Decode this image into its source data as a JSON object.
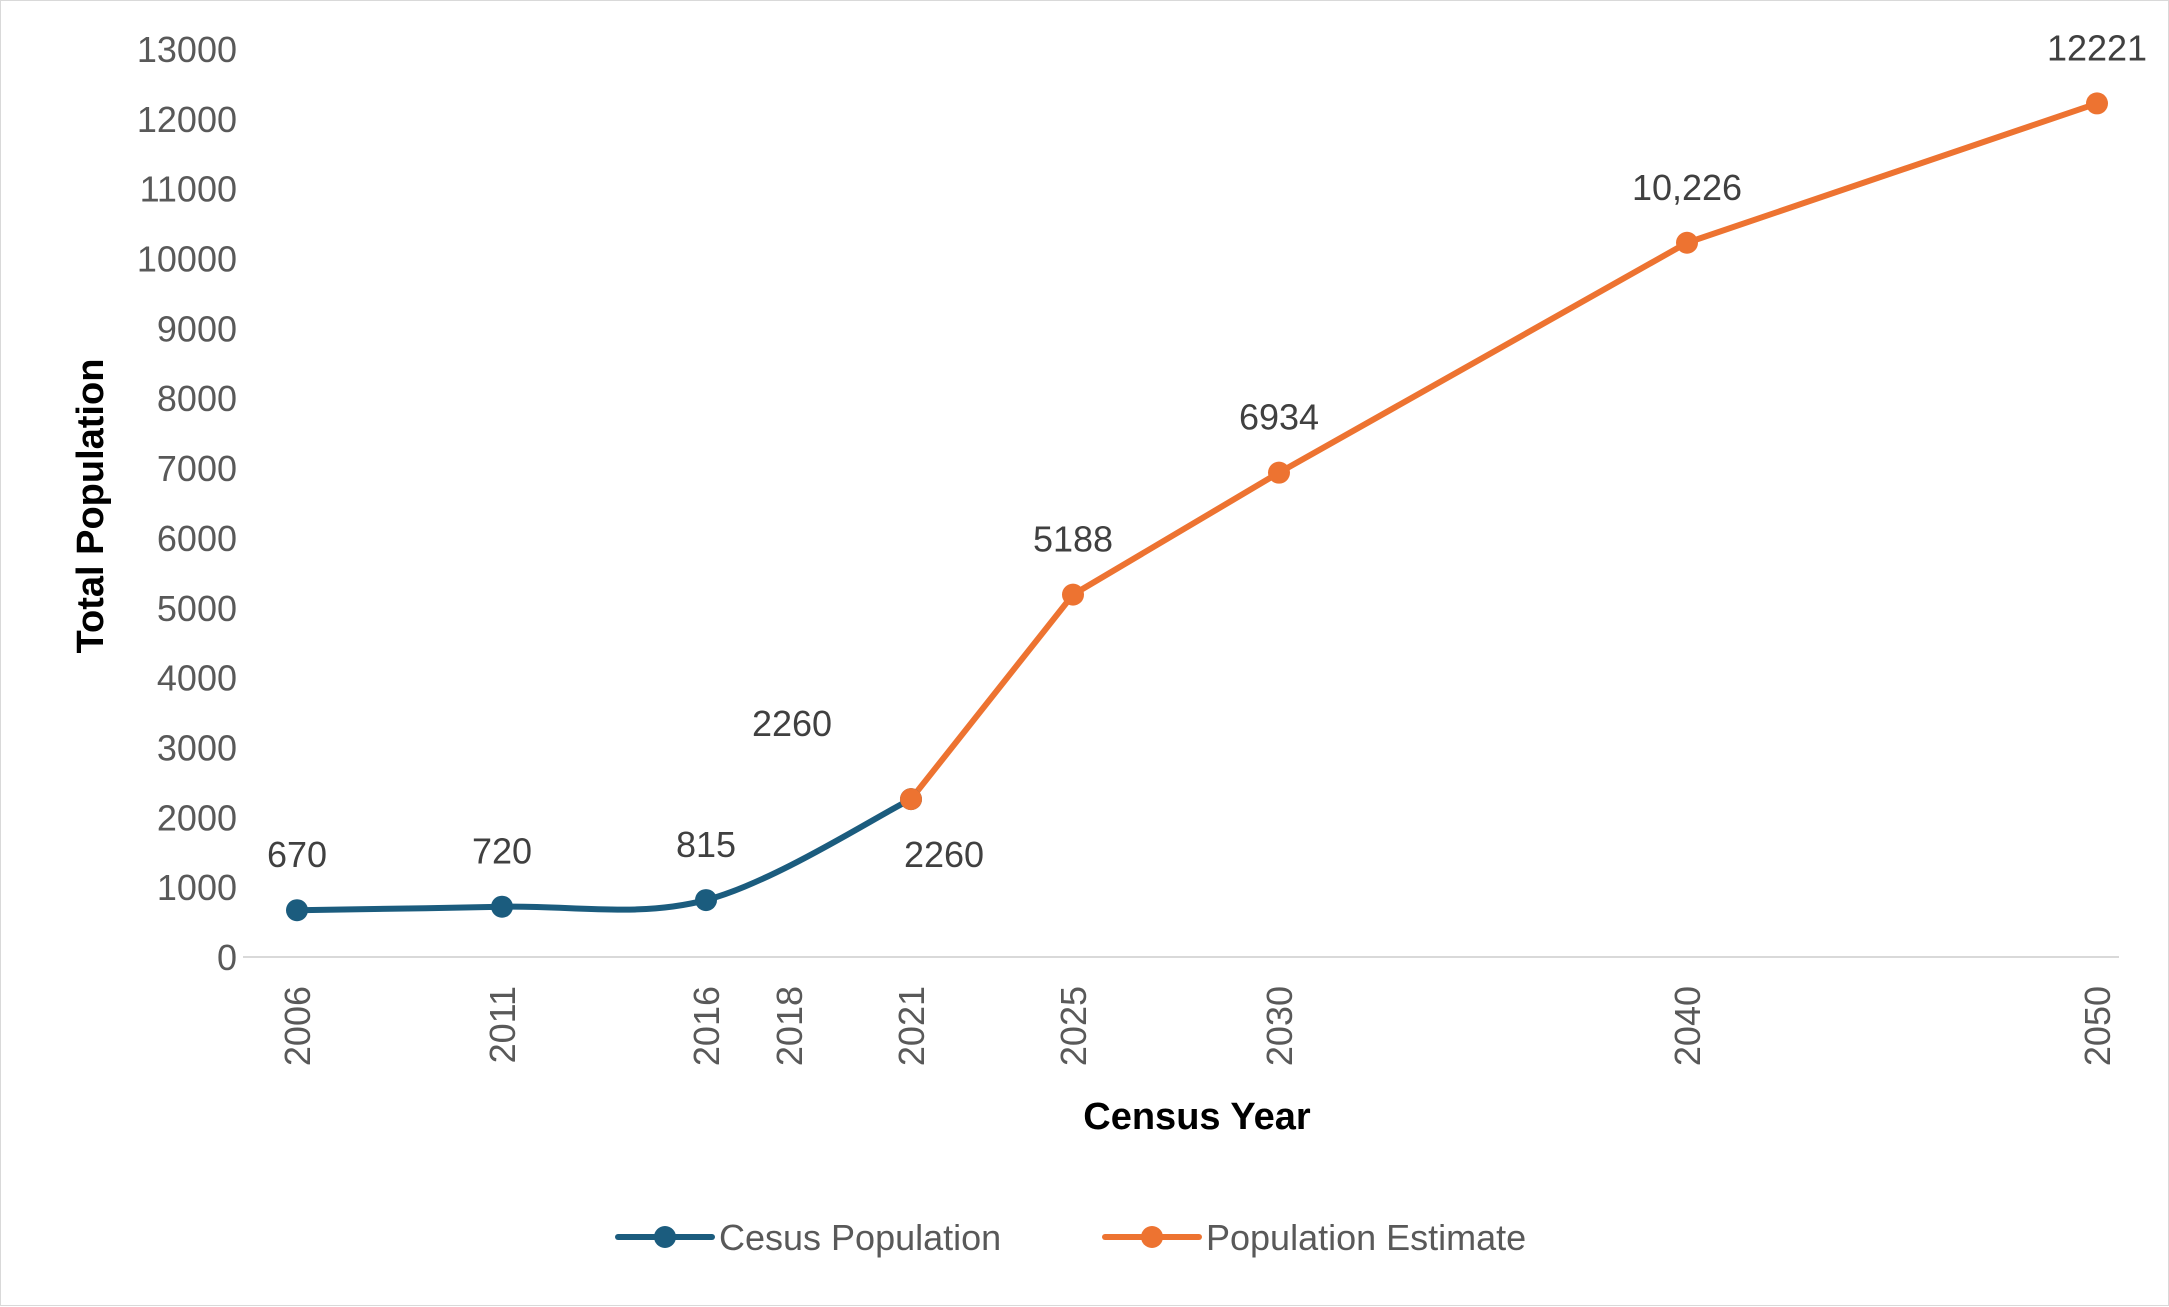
{
  "chart_data": {
    "type": "line",
    "title": "",
    "xlabel": "Census Year",
    "ylabel": "Total Population",
    "ylim": [
      0,
      13000
    ],
    "yticks": [
      "0",
      "1000",
      "2000",
      "3000",
      "4000",
      "5000",
      "6000",
      "7000",
      "8000",
      "9000",
      "10000",
      "11000",
      "12000",
      "13000"
    ],
    "categories": [
      "2006",
      "2011",
      "2016",
      "2018",
      "2021",
      "2025",
      "2030",
      "2040",
      "2050"
    ],
    "grid": false,
    "legend_position": "bottom",
    "series": [
      {
        "name": "Cesus Population",
        "color": "#1b5c7e",
        "smooth": true,
        "points": [
          {
            "x": "2006",
            "y": 670,
            "label": "670"
          },
          {
            "x": "2011",
            "y": 720,
            "label": "720"
          },
          {
            "x": "2016",
            "y": 815,
            "label": "815"
          },
          {
            "x": "2021",
            "y": 2260,
            "label": "2260"
          }
        ]
      },
      {
        "name": "Population Estimate",
        "color": "#ed7331",
        "smooth": false,
        "points": [
          {
            "x": "2021",
            "y": 2260,
            "label": "2260"
          },
          {
            "x": "2025",
            "y": 5188,
            "label": "5188"
          },
          {
            "x": "2030",
            "y": 6934,
            "label": "6934"
          },
          {
            "x": "2040",
            "y": 10226,
            "label": "10,226"
          },
          {
            "x": "2050",
            "y": 12221,
            "label": "12221"
          }
        ]
      }
    ]
  }
}
